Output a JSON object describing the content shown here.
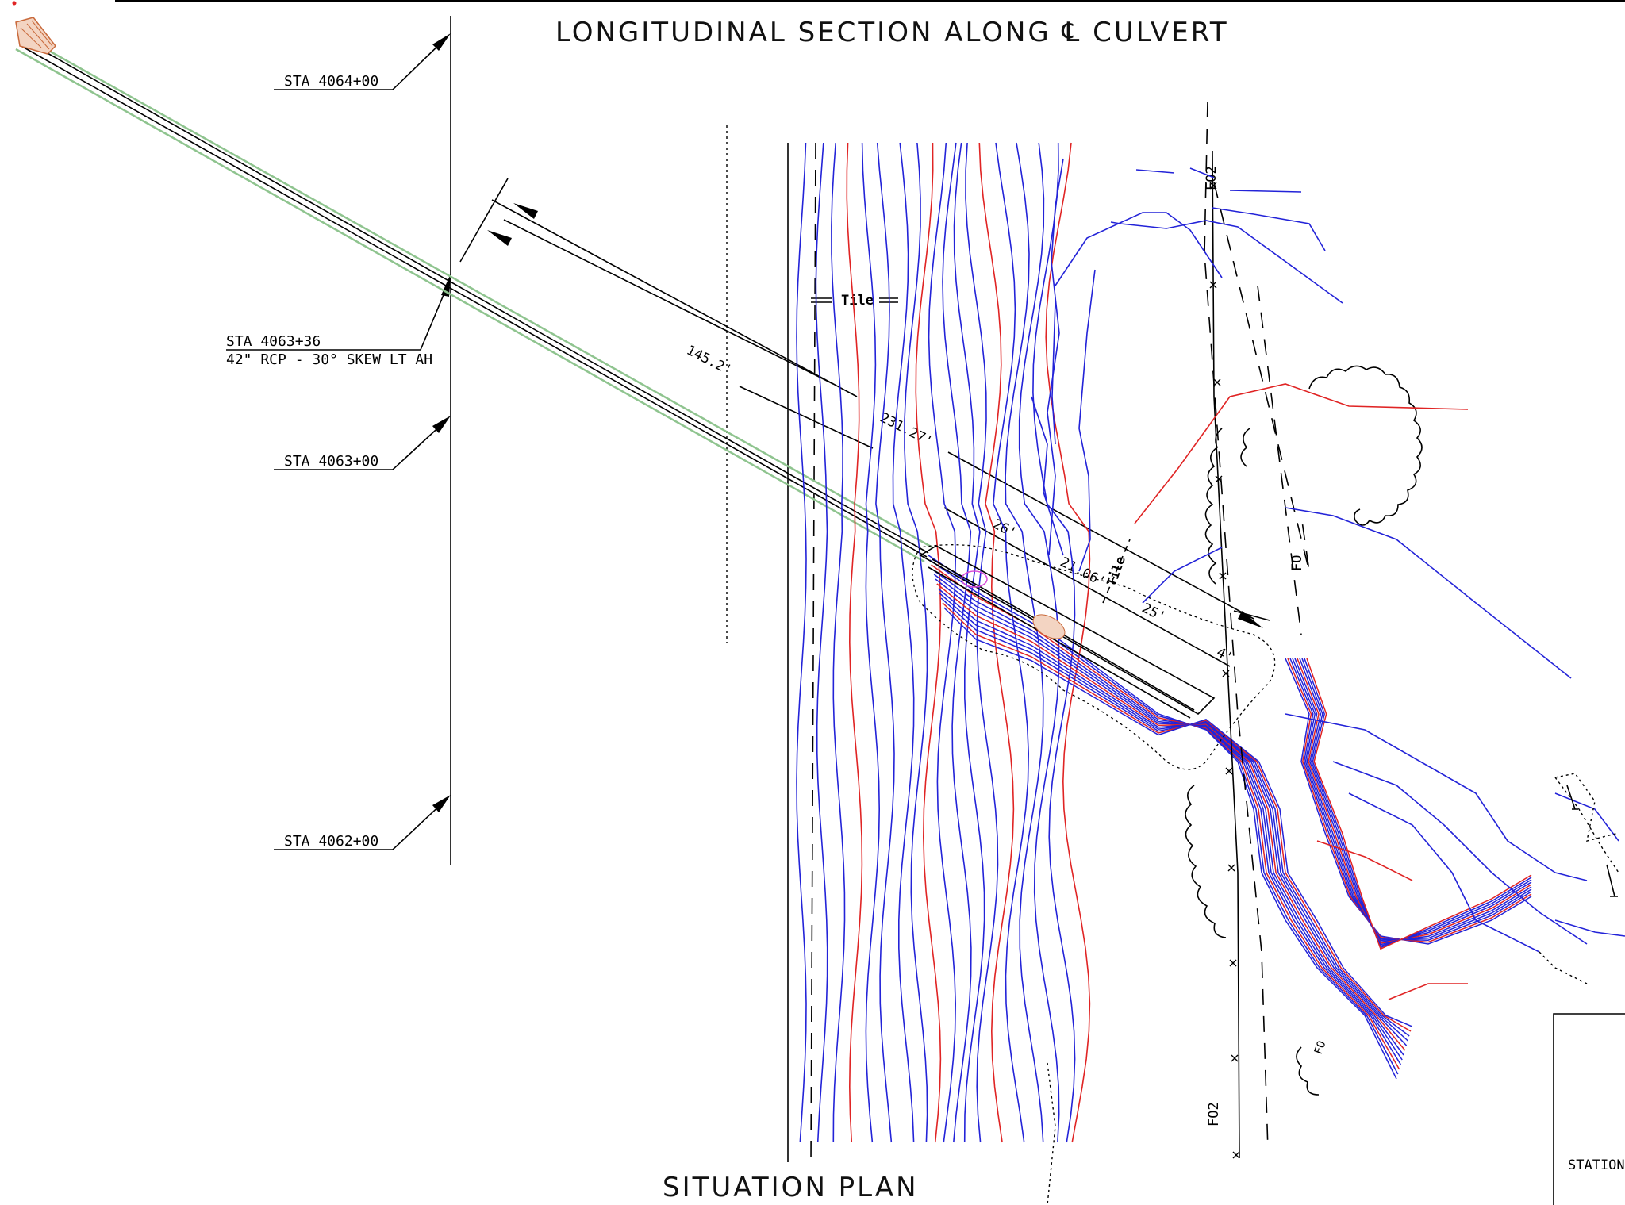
{
  "titles": {
    "top": "LONGITUDINAL SECTION ALONG ℄ CULVERT",
    "bottom": "SITUATION PLAN"
  },
  "stations": [
    {
      "label": "STA 4064+00"
    },
    {
      "label": "STA 4063+36",
      "sublabel": "42\" RCP - 30° SKEW LT AH"
    },
    {
      "label": "STA 4063+00"
    },
    {
      "label": "STA 4062+00"
    }
  ],
  "dimensions": {
    "d1": "145.2'",
    "d2": "231.27'",
    "d3": "26'",
    "d4": "21.06'",
    "d5": "25'",
    "d6": "4'"
  },
  "labels": {
    "tile1": "Tile",
    "tile2": "Tile",
    "fo": "FO",
    "fo2_top": "FO2",
    "fo2_bottom": "FO2",
    "fo_small": "FO",
    "station_box": "STATION"
  },
  "colors": {
    "contour_primary": "#2323d8",
    "contour_index": "#e02424",
    "pipe_outline": "#8fc48f",
    "linework": "#000000"
  }
}
